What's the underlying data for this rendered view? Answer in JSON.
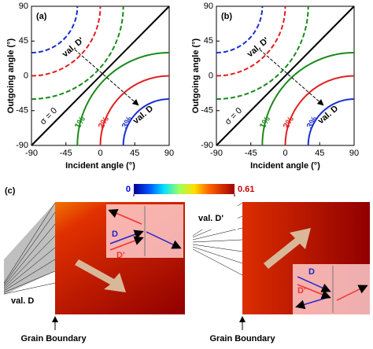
{
  "panels": [
    {
      "label": "(a)",
      "x_label": "Incident angle (°)",
      "y_label": "Outgoing angle (°)",
      "xlim": [
        -90,
        90
      ],
      "ylim": [
        -90,
        90
      ],
      "xticks": [
        -90,
        -45,
        0,
        45,
        90
      ],
      "yticks": [
        -90,
        -45,
        0,
        45,
        90
      ],
      "annotations": {
        "val_d_prime": "val. D'",
        "val_d": "val. D",
        "sigma": "σ = 0",
        "c1": "1%",
        "c2": "2%",
        "c3": "3%"
      }
    },
    {
      "label": "(b)",
      "x_label": "Incident angle (°)",
      "y_label": "Outgoing angle (°)",
      "xlim": [
        -90,
        90
      ],
      "ylim": [
        -90,
        90
      ],
      "xticks": [
        -90,
        -45,
        0,
        45,
        90
      ],
      "yticks": [
        -90,
        -45,
        0,
        45,
        90
      ],
      "annotations": {
        "val_d_prime": "val. D'",
        "val_d": "val. D",
        "sigma": "σ = 0",
        "c1": "1%",
        "c2": "2%",
        "c3": "3%"
      }
    }
  ],
  "panel_c": {
    "label": "(c)",
    "colorbar": {
      "lim": [
        0,
        0.61
      ],
      "ticks": [
        0,
        0.61
      ]
    },
    "left": {
      "label": "val. D",
      "d": "D",
      "d_prime": "D'"
    },
    "right": {
      "label": "val. D'",
      "d": "D",
      "d_prime": "D'"
    },
    "boundary_left": "Grain Boundary",
    "boundary_right": "Grain Boundary"
  }
}
